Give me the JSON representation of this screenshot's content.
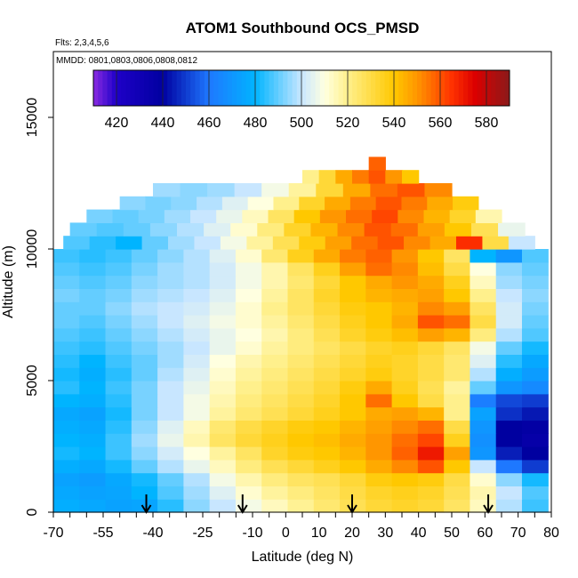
{
  "chart_data": {
    "type": "heatmap",
    "title": "ATOM1 Southbound OCS_PMSD",
    "subtitle_flights": "Flts: 2,3,4,5,6",
    "subtitle_dates": "MMDD: 0801,0803,0806,0808,0812",
    "xlabel": "Latitude (deg N)",
    "ylabel": "Altitude (m)",
    "xlim": [
      -70,
      80
    ],
    "ylim": [
      0,
      17500
    ],
    "x_ticks": [
      -70,
      -55,
      -40,
      -25,
      -10,
      0,
      10,
      20,
      30,
      40,
      50,
      60,
      70,
      80
    ],
    "x_minor_ticks": [
      -65,
      -60,
      -50,
      -45,
      -35,
      -30,
      -20,
      -15,
      -5,
      5,
      15,
      25,
      35,
      45,
      55,
      65,
      75
    ],
    "y_ticks": [
      0,
      5000,
      10000,
      15000
    ],
    "colorbar": {
      "range": [
        410,
        590
      ],
      "ticks": [
        420,
        440,
        460,
        480,
        500,
        520,
        540,
        560,
        580
      ],
      "stops": [
        {
          "v": 410,
          "c": "#8a2be2"
        },
        {
          "v": 420,
          "c": "#1e00c8"
        },
        {
          "v": 440,
          "c": "#0000a0"
        },
        {
          "v": 460,
          "c": "#1e78ff"
        },
        {
          "v": 480,
          "c": "#00b4ff"
        },
        {
          "v": 500,
          "c": "#c8e6ff"
        },
        {
          "v": 510,
          "c": "#ffffe0"
        },
        {
          "v": 520,
          "c": "#fff08c"
        },
        {
          "v": 540,
          "c": "#ffc800"
        },
        {
          "v": 550,
          "c": "#ff9600"
        },
        {
          "v": 565,
          "c": "#ff3200"
        },
        {
          "v": 575,
          "c": "#dc0000"
        },
        {
          "v": 590,
          "c": "#8b1a1a"
        }
      ]
    },
    "arrows_latitude": [
      -42,
      -13,
      20,
      61
    ],
    "altitude_bins": [
      {
        "alt": 0,
        "lat_start": -70,
        "lat_end": 79,
        "values": [
          478,
          476,
          474,
          475,
          484,
          494,
          500,
          508,
          514,
          519,
          524,
          528,
          532,
          534,
          532,
          526,
          514,
          498,
          486
        ]
      },
      {
        "alt": 500,
        "lat_start": -70,
        "lat_end": 79,
        "values": [
          476,
          474,
          475,
          480,
          488,
          496,
          504,
          512,
          518,
          522,
          526,
          530,
          534,
          536,
          534,
          528,
          516,
          500,
          488
        ]
      },
      {
        "alt": 1000,
        "lat_start": -70,
        "lat_end": 79,
        "values": [
          474,
          472,
          476,
          482,
          490,
          498,
          508,
          516,
          522,
          526,
          528,
          532,
          538,
          540,
          538,
          530,
          512,
          494,
          482
        ]
      },
      {
        "alt": 1500,
        "lat_start": -70,
        "lat_end": 79,
        "values": [
          478,
          476,
          482,
          490,
          498,
          506,
          514,
          522,
          528,
          532,
          536,
          540,
          546,
          552,
          560,
          540,
          500,
          460,
          450
        ]
      },
      {
        "alt": 2000,
        "lat_start": -70,
        "lat_end": 79,
        "values": [
          482,
          480,
          486,
          494,
          502,
          510,
          518,
          526,
          534,
          538,
          540,
          544,
          550,
          558,
          570,
          548,
          470,
          445,
          440
        ]
      },
      {
        "alt": 2500,
        "lat_start": -70,
        "lat_end": 79,
        "values": [
          480,
          478,
          486,
          496,
          506,
          516,
          526,
          532,
          536,
          540,
          542,
          546,
          550,
          556,
          562,
          536,
          468,
          440,
          436
        ]
      },
      {
        "alt": 3000,
        "lat_start": -70,
        "lat_end": 79,
        "values": [
          478,
          476,
          484,
          494,
          504,
          514,
          524,
          530,
          534,
          538,
          540,
          544,
          548,
          552,
          556,
          530,
          470,
          440,
          438
        ]
      },
      {
        "alt": 3500,
        "lat_start": -70,
        "lat_end": 79,
        "values": [
          476,
          474,
          482,
          492,
          500,
          508,
          518,
          524,
          528,
          532,
          536,
          540,
          546,
          548,
          544,
          520,
          474,
          448,
          444
        ]
      },
      {
        "alt": 4000,
        "lat_start": -70,
        "lat_end": 79,
        "values": [
          480,
          478,
          484,
          492,
          500,
          508,
          516,
          522,
          526,
          530,
          534,
          540,
          556,
          540,
          530,
          520,
          462,
          452,
          450
        ]
      },
      {
        "alt": 4500,
        "lat_start": -70,
        "lat_end": 79,
        "values": [
          484,
          480,
          486,
          492,
          500,
          506,
          514,
          520,
          524,
          528,
          532,
          538,
          546,
          536,
          528,
          518,
          490,
          470,
          466
        ]
      },
      {
        "alt": 5000,
        "lat_start": -70,
        "lat_end": 79,
        "values": [
          482,
          478,
          484,
          490,
          498,
          504,
          512,
          518,
          522,
          526,
          530,
          534,
          538,
          534,
          530,
          524,
          498,
          478,
          472
        ]
      },
      {
        "alt": 5500,
        "lat_start": -70,
        "lat_end": 79,
        "values": [
          484,
          480,
          486,
          490,
          496,
          502,
          510,
          516,
          520,
          524,
          528,
          532,
          536,
          534,
          530,
          524,
          504,
          484,
          476
        ]
      },
      {
        "alt": 6000,
        "lat_start": -70,
        "lat_end": 79,
        "values": [
          486,
          484,
          488,
          492,
          496,
          500,
          506,
          512,
          518,
          522,
          526,
          530,
          534,
          536,
          532,
          526,
          508,
          490,
          482
        ]
      },
      {
        "alt": 6500,
        "lat_start": -70,
        "lat_end": 79,
        "values": [
          488,
          486,
          490,
          494,
          498,
          502,
          506,
          510,
          516,
          522,
          528,
          534,
          538,
          542,
          548,
          544,
          522,
          498,
          488
        ]
      },
      {
        "alt": 7000,
        "lat_start": -70,
        "lat_end": 79,
        "values": [
          490,
          488,
          492,
          496,
          500,
          504,
          508,
          512,
          518,
          524,
          530,
          536,
          540,
          546,
          560,
          556,
          530,
          502,
          490
        ]
      },
      {
        "alt": 7500,
        "lat_start": -70,
        "lat_end": 79,
        "values": [
          490,
          490,
          494,
          498,
          500,
          502,
          506,
          512,
          520,
          526,
          532,
          538,
          540,
          544,
          552,
          548,
          526,
          502,
          492
        ]
      },
      {
        "alt": 8000,
        "lat_start": -70,
        "lat_end": 79,
        "values": [
          492,
          490,
          492,
          496,
          498,
          500,
          504,
          510,
          518,
          526,
          534,
          540,
          544,
          546,
          548,
          540,
          520,
          500,
          494
        ]
      },
      {
        "alt": 8500,
        "lat_start": -70,
        "lat_end": 79,
        "values": [
          490,
          488,
          490,
          494,
          496,
          498,
          502,
          508,
          516,
          524,
          532,
          540,
          546,
          550,
          546,
          536,
          514,
          496,
          492
        ]
      },
      {
        "alt": 9000,
        "lat_start": -70,
        "lat_end": 79,
        "values": [
          488,
          486,
          488,
          492,
          496,
          498,
          502,
          508,
          516,
          526,
          536,
          548,
          556,
          552,
          542,
          530,
          510,
          494,
          490
        ]
      },
      {
        "alt": 9500,
        "lat_start": -70,
        "lat_end": 79,
        "values": [
          486,
          484,
          486,
          490,
          494,
          498,
          504,
          512,
          524,
          536,
          546,
          554,
          558,
          550,
          540,
          526,
          480,
          470,
          488
        ]
      },
      {
        "alt": 10000,
        "lat_start": -67,
        "lat_end": 75,
        "values": [
          488,
          484,
          480,
          490,
          496,
          500,
          508,
          518,
          528,
          538,
          548,
          556,
          560,
          552,
          546,
          566,
          530,
          500
        ]
      },
      {
        "alt": 10500,
        "lat_start": -65,
        "lat_end": 72,
        "values": [
          490,
          488,
          490,
          494,
          498,
          504,
          512,
          522,
          534,
          544,
          552,
          560,
          556,
          548,
          540,
          528,
          506
        ]
      },
      {
        "alt": 11000,
        "lat_start": -60,
        "lat_end": 65,
        "values": [
          492,
          490,
          492,
          496,
          500,
          506,
          514,
          526,
          540,
          550,
          556,
          562,
          552,
          544,
          534,
          516
        ]
      },
      {
        "alt": 11500,
        "lat_start": -50,
        "lat_end": 58,
        "values": [
          494,
          492,
          494,
          498,
          504,
          510,
          520,
          534,
          546,
          554,
          560,
          554,
          546,
          538
        ]
      },
      {
        "alt": 12000,
        "lat_start": -40,
        "lat_end": 50,
        "values": [
          496,
          494,
          496,
          500,
          508,
          518,
          532,
          546,
          556,
          560,
          552
        ]
      },
      {
        "alt": 12500,
        "lat_start": 5,
        "lat_end": 40,
        "values": [
          520,
          532,
          546,
          554,
          560,
          550,
          540
        ]
      },
      {
        "alt": 13000,
        "lat_start": 25,
        "lat_end": 30,
        "values": [
          558
        ]
      }
    ],
    "grid": false,
    "legend": "colorbar-top-inside"
  }
}
